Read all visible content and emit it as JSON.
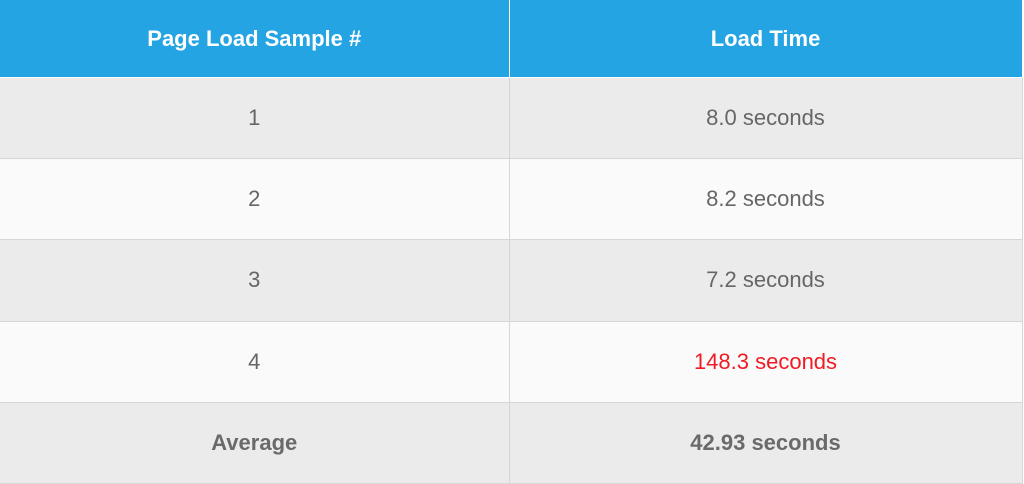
{
  "table": {
    "headers": [
      "Page Load Sample #",
      "Load Time"
    ],
    "rows": [
      {
        "sample": "1",
        "time": "8.0 seconds"
      },
      {
        "sample": "2",
        "time": "8.2 seconds"
      },
      {
        "sample": "3",
        "time": "7.2 seconds"
      },
      {
        "sample": "4",
        "time": "148.3 seconds"
      }
    ],
    "footer": {
      "label": "Average",
      "time": "42.93 seconds"
    }
  },
  "colors": {
    "header_bg": "#24a4e3",
    "outlier_text": "#ee1c24",
    "row_odd": "#ebebeb",
    "row_even": "#fafafa"
  }
}
